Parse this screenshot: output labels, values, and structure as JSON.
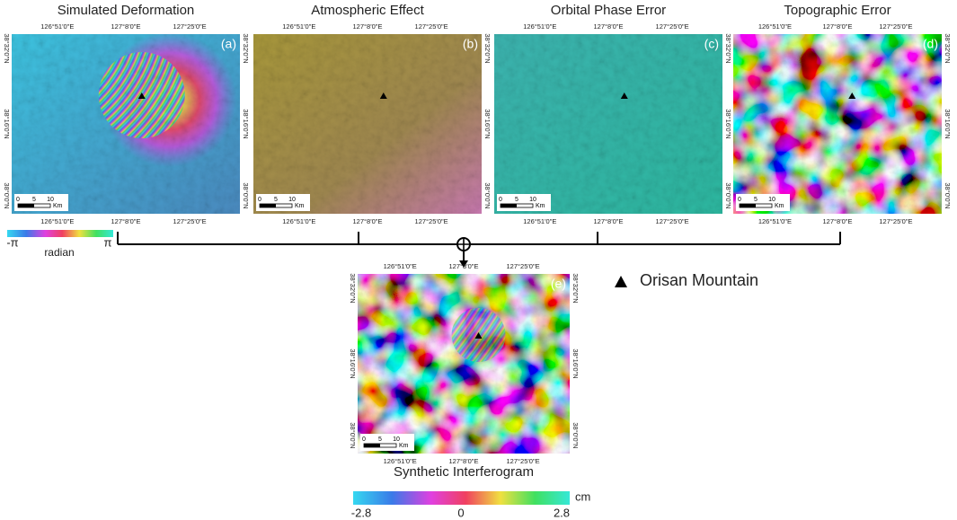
{
  "panels": [
    {
      "title": "Simulated Deformation",
      "tag": "(a)"
    },
    {
      "title": "Atmospheric Effect",
      "tag": "(b)"
    },
    {
      "title": "Orbital Phase Error",
      "tag": "(c)"
    },
    {
      "title": "Topographic Error",
      "tag": "(d)"
    }
  ],
  "lon_labels": [
    "126°51'0\"E",
    "127°8'0\"E",
    "127°25'0\"E"
  ],
  "lat_labels": [
    "38°32'0\"N",
    "38°16'0\"N",
    "38°0'0\"N"
  ],
  "scale_bar": {
    "ticks": [
      "0",
      "5",
      "10"
    ],
    "unit": "Km"
  },
  "phase_colorbar": {
    "min": "-π",
    "label": "radian",
    "max": "π"
  },
  "result": {
    "title": "Synthetic Interferogram",
    "tag": "(e)"
  },
  "displacement_colorbar": {
    "ticks": [
      "-2.8",
      "0",
      "2.8"
    ],
    "unit": "cm"
  },
  "legend": {
    "label": "Orisan Mountain"
  }
}
